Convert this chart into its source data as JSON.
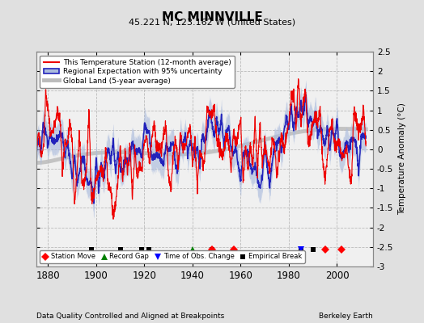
{
  "title": "MC MINNVILLE",
  "subtitle": "45.221 N, 123.162 W (United States)",
  "ylabel": "Temperature Anomaly (°C)",
  "footer_left": "Data Quality Controlled and Aligned at Breakpoints",
  "footer_right": "Berkeley Earth",
  "xlim": [
    1875,
    2015
  ],
  "ylim": [
    -3.0,
    2.5
  ],
  "yticks": [
    -3,
    -2.5,
    -2,
    -1.5,
    -1,
    -0.5,
    0,
    0.5,
    1,
    1.5,
    2,
    2.5
  ],
  "xticks": [
    1880,
    1900,
    1920,
    1940,
    1960,
    1980,
    2000
  ],
  "bg_color": "#e0e0e0",
  "plot_bg_color": "#f0f0f0",
  "grid_color": "#bbbbbb",
  "station_color": "#ee0000",
  "regional_color": "#2222bb",
  "regional_fill_color": "#aabbdd",
  "global_color": "#bbbbbb",
  "station_moves": [
    1948,
    1957,
    1995,
    2002
  ],
  "record_gaps": [
    1940
  ],
  "obs_changes": [
    1985
  ],
  "empirical_breaks": [
    1898,
    1910,
    1919,
    1922,
    1948,
    1985,
    1990
  ],
  "marker_y": -2.57,
  "seed": 12345
}
